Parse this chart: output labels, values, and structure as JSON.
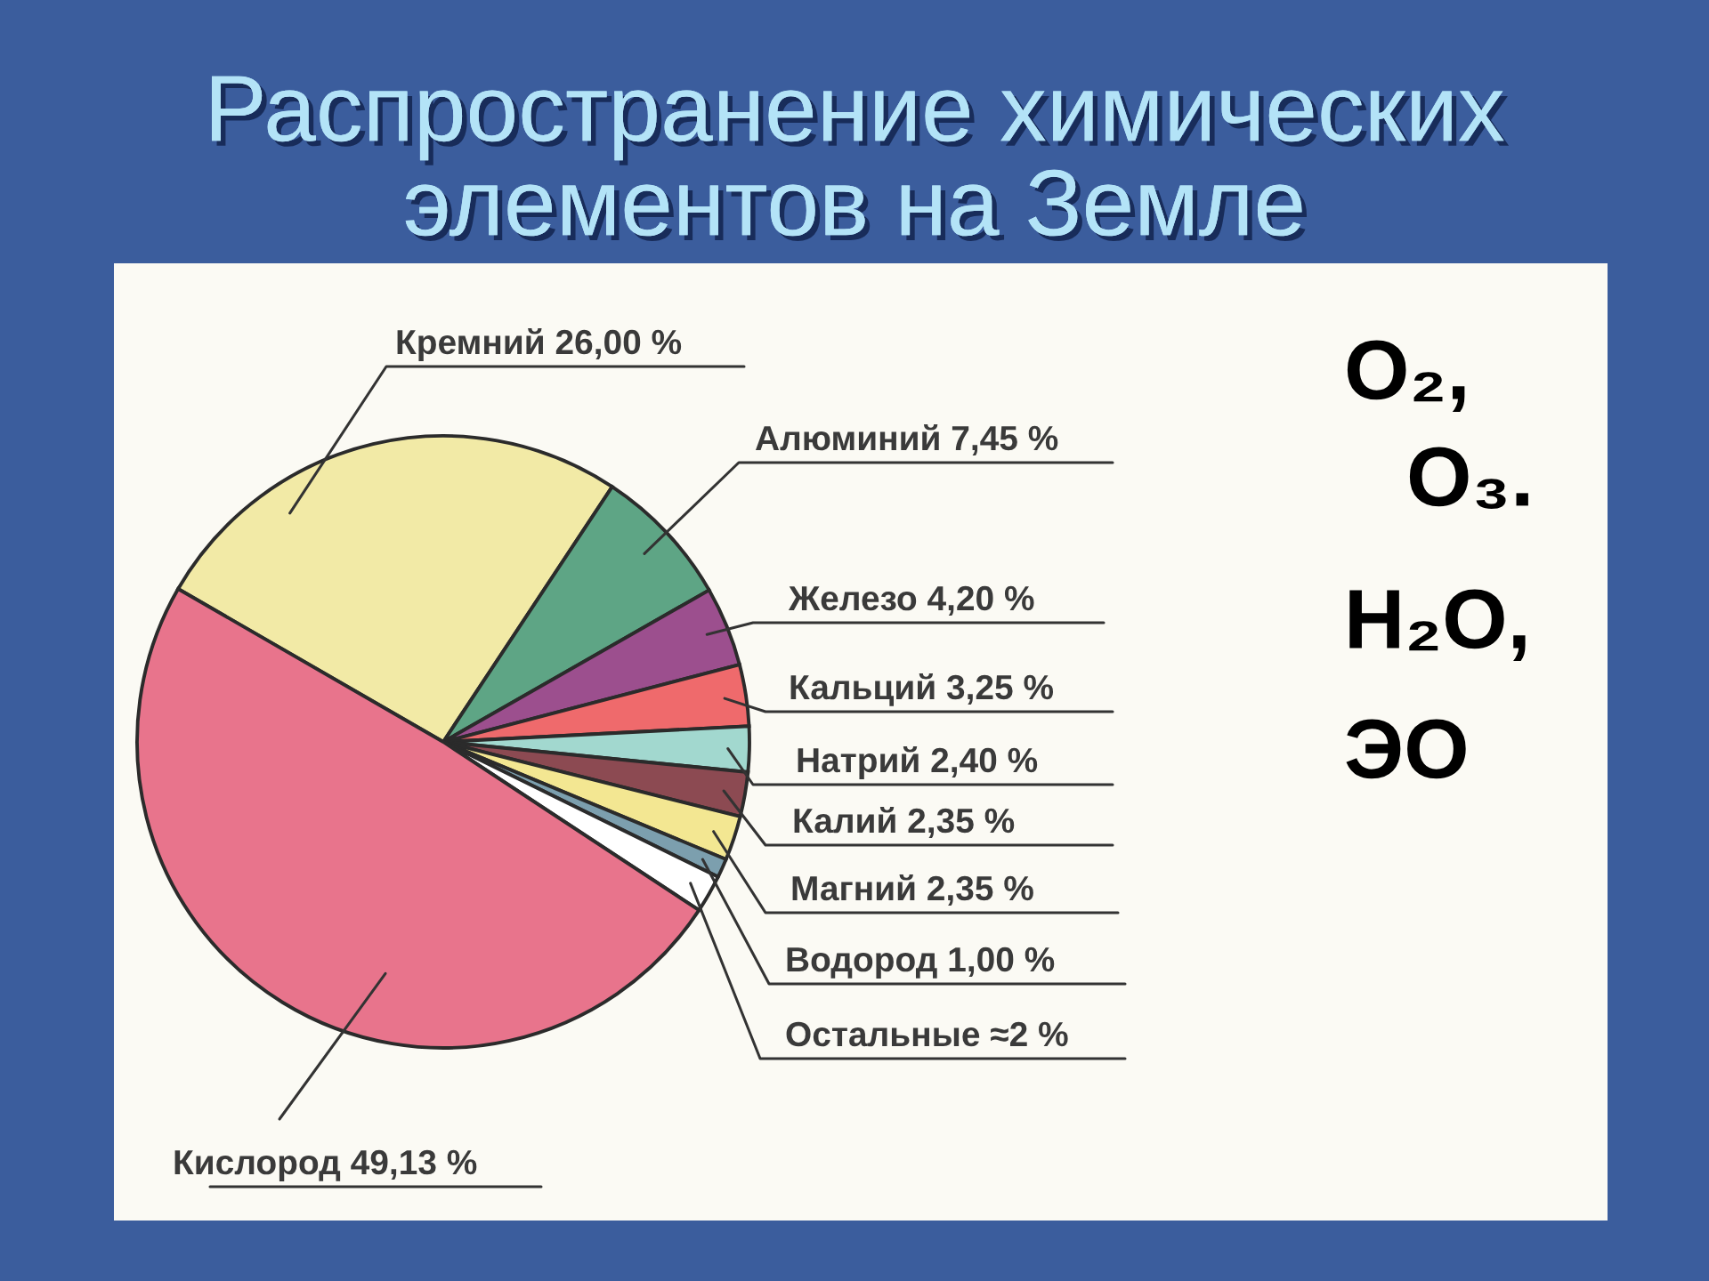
{
  "chart_data": {
    "type": "pie",
    "title": "Распространение химических\nэлементов на Земле",
    "categories": [
      "Кремний",
      "Алюминий",
      "Железо",
      "Кальций",
      "Натрий",
      "Калий",
      "Магний",
      "Водород",
      "Остальные",
      "Кислород"
    ],
    "values": [
      26.0,
      7.45,
      4.2,
      3.25,
      2.4,
      2.35,
      2.35,
      1.0,
      2,
      49.13
    ],
    "value_labels": [
      "26,00 %",
      "7,45 %",
      "4,20 %",
      "3,25 %",
      "2,40 %",
      "2,35 %",
      "2,35 %",
      "1,00 %",
      "≈2 %",
      "49,13 %"
    ],
    "colors": [
      "#f2eaa6",
      "#5ea585",
      "#9c4f8e",
      "#ef6a6c",
      "#a2d8cf",
      "#8c4a52",
      "#f3e792",
      "#7c9fae",
      "#ffffff",
      "#e8748c"
    ],
    "annotations": [
      "O₂,",
      "O₃.",
      "H₂O,",
      "ЭО"
    ]
  }
}
